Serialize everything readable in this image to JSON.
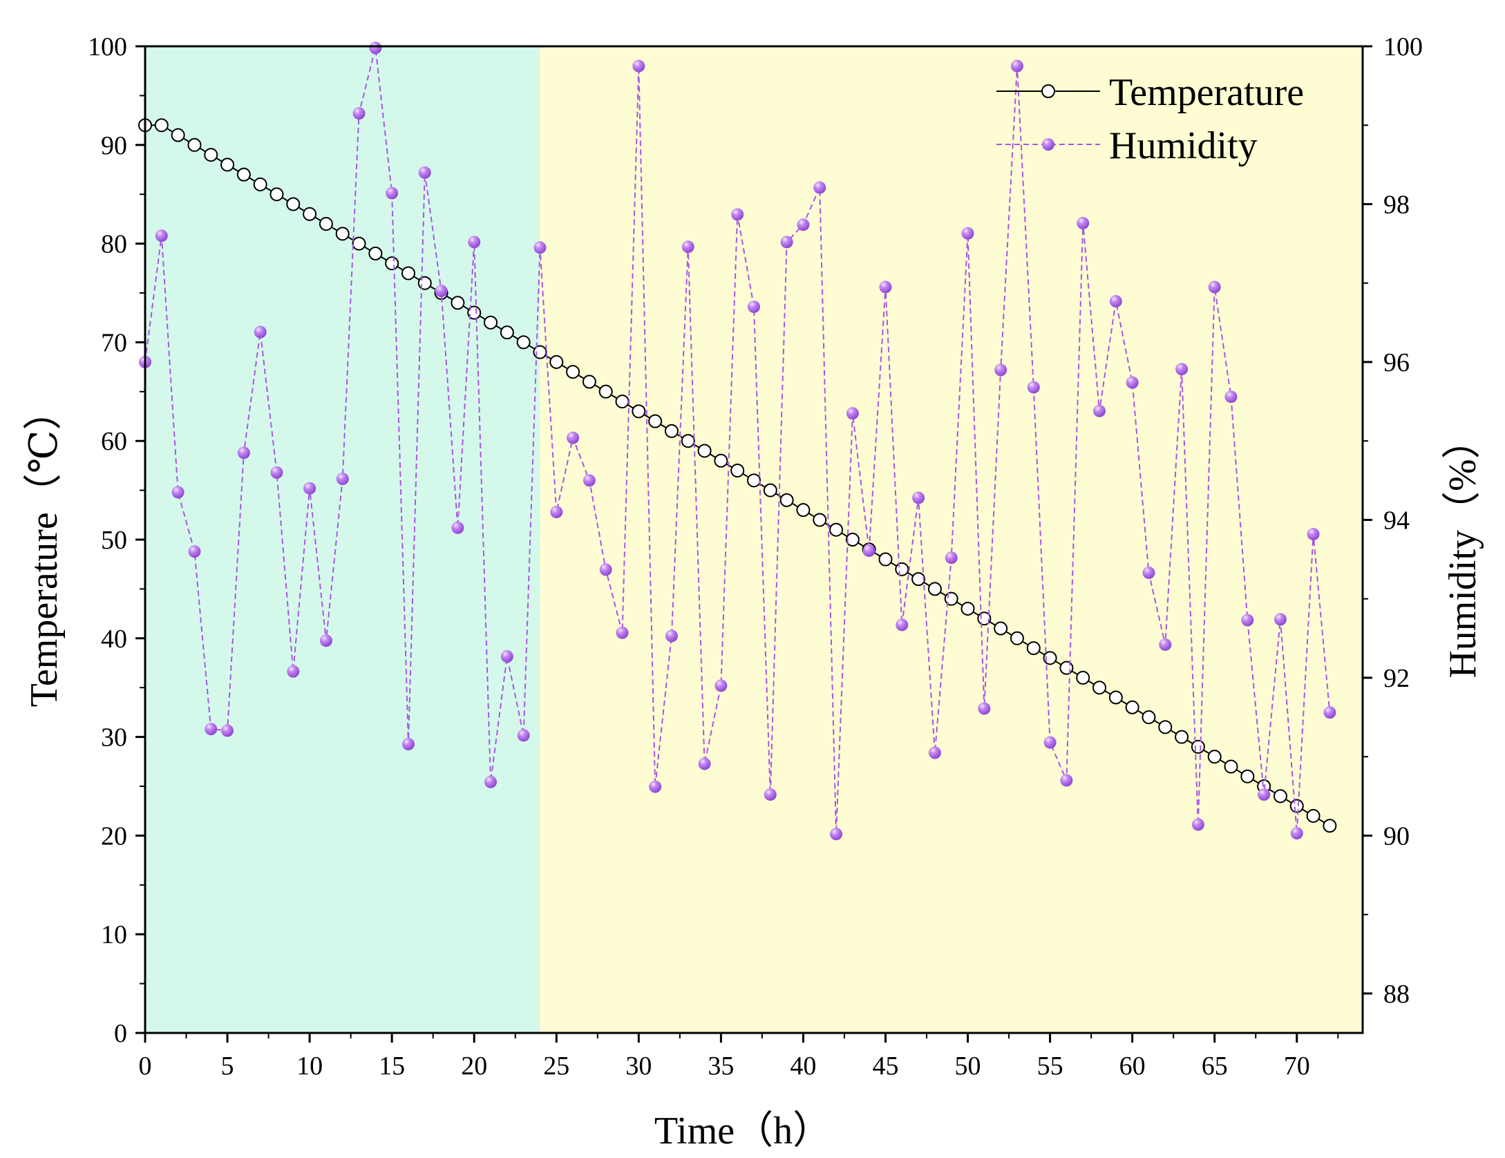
{
  "chart_data": {
    "type": "line",
    "title": "",
    "xlabel": "Time（h）",
    "ylabel": "Temperature（℃）",
    "y2label": "Humidity（%）",
    "xlim": [
      0,
      74
    ],
    "ylim": [
      0,
      100
    ],
    "y2lim": [
      87.5,
      100
    ],
    "x_ticks": [
      0,
      5,
      10,
      15,
      20,
      25,
      30,
      35,
      40,
      45,
      50,
      55,
      60,
      65,
      70
    ],
    "y_ticks": [
      0,
      10,
      20,
      30,
      40,
      50,
      60,
      70,
      80,
      90,
      100
    ],
    "y2_ticks": [
      88,
      90,
      92,
      94,
      96,
      98,
      100
    ],
    "legend_position": "top-right",
    "grid": false,
    "background_regions": [
      {
        "x_start": 0,
        "x_end": 24,
        "color": "#d4f9ea",
        "label": ""
      },
      {
        "x_start": 24,
        "x_end": 74,
        "color": "#fdfcd2",
        "label": ""
      }
    ],
    "x": [
      0,
      1,
      2,
      3,
      4,
      5,
      6,
      7,
      8,
      9,
      10,
      11,
      12,
      13,
      14,
      15,
      16,
      17,
      18,
      19,
      20,
      21,
      22,
      23,
      24,
      25,
      26,
      27,
      28,
      29,
      30,
      31,
      32,
      33,
      34,
      35,
      36,
      37,
      38,
      39,
      40,
      41,
      42,
      43,
      44,
      45,
      46,
      47,
      48,
      49,
      50,
      51,
      52,
      53,
      54,
      55,
      56,
      57,
      58,
      59,
      60,
      61,
      62,
      63,
      64,
      65,
      66,
      67,
      68,
      69,
      70,
      71,
      72
    ],
    "series": [
      {
        "name": "Temperature",
        "axis": "left",
        "color": "#000000",
        "marker": "open-circle",
        "line_style": "solid",
        "values": [
          92,
          92,
          91,
          90,
          89,
          88,
          87,
          86,
          85,
          84,
          83,
          82,
          81,
          80,
          79,
          78,
          77,
          76,
          75,
          74,
          73,
          72,
          71,
          70,
          69,
          68,
          67,
          66,
          65,
          64,
          63,
          62,
          61,
          60,
          59,
          58,
          57,
          56,
          55,
          54,
          53,
          52,
          51,
          50,
          49,
          48,
          47,
          46,
          45,
          44,
          43,
          42,
          41,
          40,
          39,
          38,
          37,
          36,
          35,
          34,
          33,
          32,
          31,
          30,
          29,
          28,
          27,
          26,
          25,
          24,
          23,
          22,
          21
        ]
      },
      {
        "name": "Humidity",
        "axis": "right",
        "color": "#a855e6",
        "marker": "filled-sphere",
        "line_style": "dashed",
        "values": [
          96.0,
          97.6,
          94.35,
          93.6,
          91.35,
          91.33,
          94.85,
          96.38,
          94.6,
          92.08,
          94.4,
          92.47,
          94.52,
          99.15,
          99.98,
          98.14,
          91.16,
          98.4,
          96.9,
          93.9,
          97.52,
          90.68,
          92.27,
          91.27,
          97.45,
          94.1,
          95.04,
          94.5,
          93.37,
          92.57,
          99.75,
          90.62,
          92.53,
          97.46,
          90.91,
          91.9,
          97.87,
          96.7,
          90.52,
          97.52,
          97.74,
          98.21,
          90.02,
          95.35,
          93.61,
          96.95,
          92.67,
          94.28,
          91.05,
          93.52,
          97.63,
          91.61,
          95.9,
          99.75,
          95.68,
          91.18,
          90.7,
          97.76,
          95.38,
          96.77,
          95.74,
          93.33,
          92.42,
          95.91,
          90.14,
          96.95,
          95.56,
          92.73,
          90.52,
          92.74,
          90.03,
          93.82,
          91.56
        ]
      }
    ]
  }
}
